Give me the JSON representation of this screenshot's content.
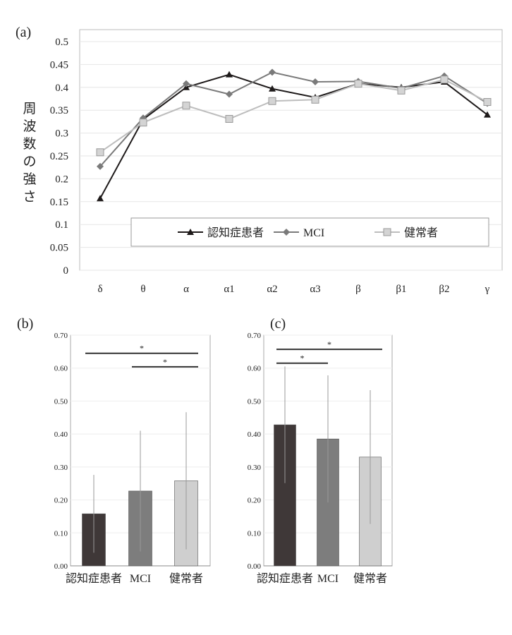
{
  "chart_data": [
    {
      "panel": "(a)",
      "type": "line",
      "ylabel": "周波数の強さ",
      "ylim": [
        0,
        0.5
      ],
      "yticks": [
        "0",
        "0.05",
        "0.1",
        "0.15",
        "0.2",
        "0.25",
        "0.3",
        "0.35",
        "0.4",
        "0.45",
        "0.5"
      ],
      "categories": [
        "δ",
        "θ",
        "α",
        "α1",
        "α2",
        "α3",
        "β",
        "β1",
        "β2",
        "γ"
      ],
      "legend_position": "bottom-inside",
      "series": [
        {
          "name": "認知症患者",
          "color": "#1e1a1a",
          "marker": "triangle",
          "values": [
            0.157,
            0.33,
            0.4,
            0.428,
            0.397,
            0.378,
            0.408,
            0.4,
            0.412,
            0.34
          ]
        },
        {
          "name": "MCI",
          "color": "#7a7a7a",
          "marker": "diamond",
          "values": [
            0.227,
            0.333,
            0.408,
            0.385,
            0.433,
            0.412,
            0.413,
            0.398,
            0.425,
            0.365
          ]
        },
        {
          "name": "健常者",
          "color": "#bdbdbd",
          "marker": "square",
          "values": [
            0.258,
            0.323,
            0.36,
            0.331,
            0.37,
            0.373,
            0.408,
            0.393,
            0.417,
            0.368
          ]
        }
      ]
    },
    {
      "panel": "(b)",
      "type": "bar",
      "ylim": [
        0,
        0.7
      ],
      "yticks": [
        "0.00",
        "0.10",
        "0.20",
        "0.30",
        "0.40",
        "0.50",
        "0.60",
        "0.70"
      ],
      "categories": [
        "認知症患者",
        "MCI",
        "健常者"
      ],
      "values": [
        0.158,
        0.227,
        0.258
      ],
      "error": [
        0.118,
        0.183,
        0.208
      ],
      "colors": [
        "#3f3838",
        "#7d7d7d",
        "#cfcfcf"
      ],
      "significance": [
        {
          "from": 0,
          "to": 2,
          "label": "*",
          "y": 0.645
        },
        {
          "from": 1,
          "to": 2,
          "label": "*",
          "y": 0.604
        }
      ]
    },
    {
      "panel": "(c)",
      "type": "bar",
      "ylim": [
        0,
        0.7
      ],
      "yticks": [
        "0.00",
        "0.10",
        "0.20",
        "0.30",
        "0.40",
        "0.50",
        "0.60",
        "0.70"
      ],
      "categories": [
        "認知症患者",
        "MCI",
        "健常者"
      ],
      "values": [
        0.428,
        0.385,
        0.33
      ],
      "error": [
        0.177,
        0.193,
        0.203
      ],
      "colors": [
        "#3f3838",
        "#7d7d7d",
        "#cfcfcf"
      ],
      "significance": [
        {
          "from": 0,
          "to": 2,
          "label": "*",
          "y": 0.657
        },
        {
          "from": 0,
          "to": 1,
          "label": "*",
          "y": 0.615
        }
      ]
    }
  ]
}
